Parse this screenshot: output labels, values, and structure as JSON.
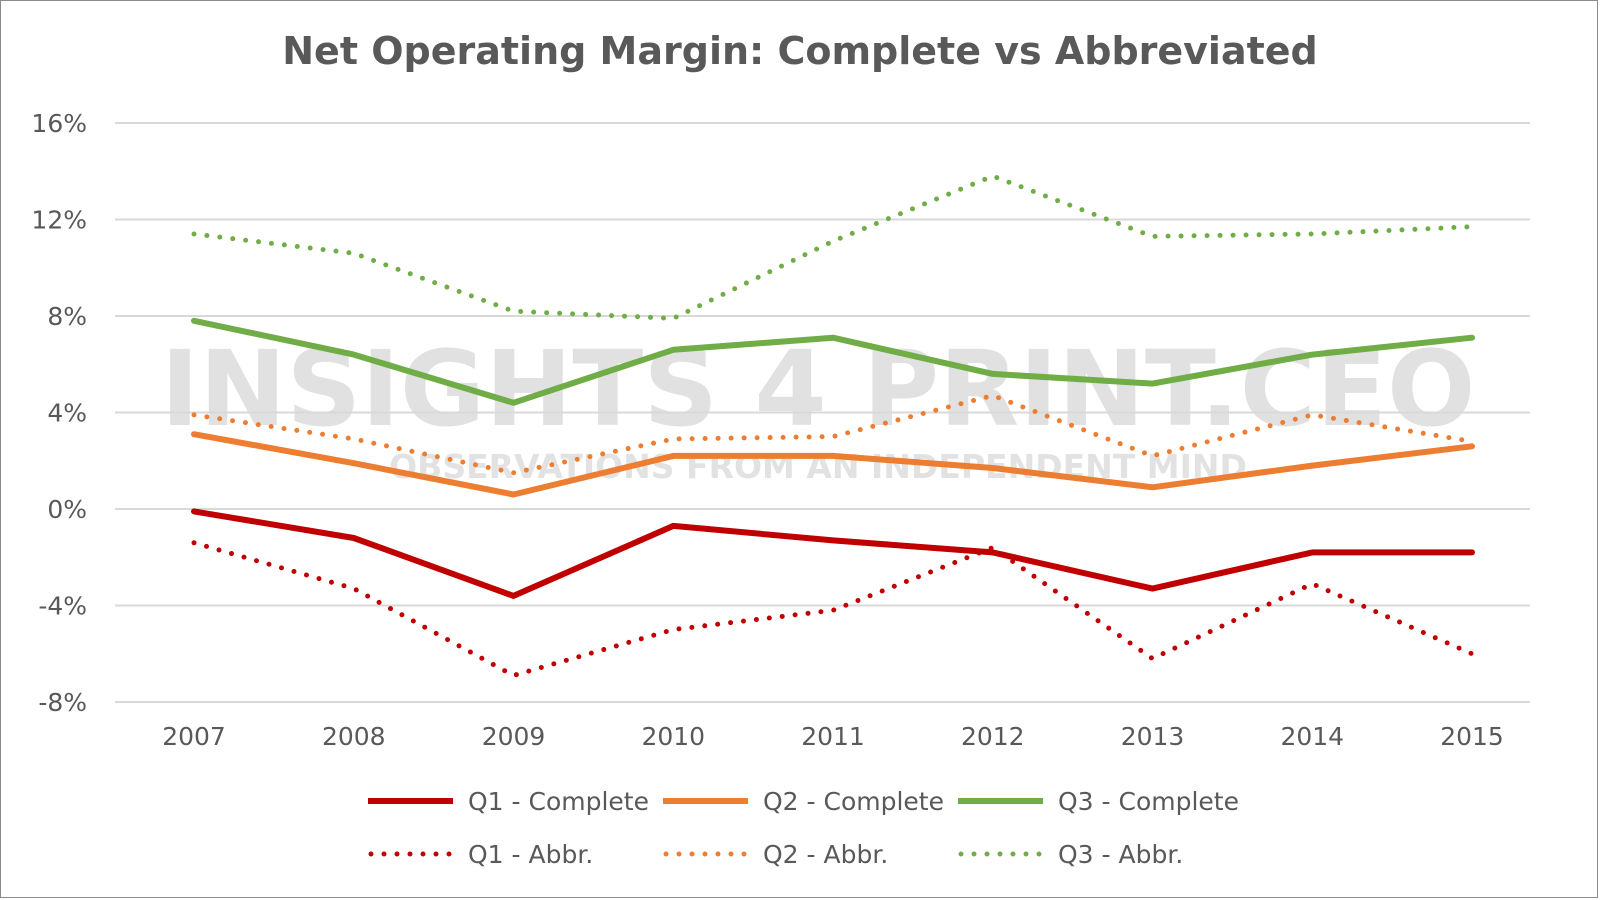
{
  "chart_data": {
    "type": "line",
    "title": "Net Operating Margin: Complete vs Abbreviated",
    "categories": [
      "2007",
      "2008",
      "2009",
      "2010",
      "2011",
      "2012",
      "2013",
      "2014",
      "2015"
    ],
    "ylim": [
      -8,
      16
    ],
    "yticks": [
      16,
      12,
      8,
      4,
      0,
      -4,
      -8
    ],
    "ytick_labels": [
      "16%",
      "12%",
      "8%",
      "4%",
      "0%",
      "-4%",
      "-8%"
    ],
    "grid": true,
    "legend_position": "bottom",
    "series": [
      {
        "name": "Q1 - Complete",
        "color": "#c00000",
        "style": "solid",
        "values": [
          -0.1,
          -1.2,
          -3.6,
          -0.7,
          -1.3,
          -1.8,
          -3.3,
          -1.8,
          -1.8
        ]
      },
      {
        "name": "Q2 - Complete",
        "color": "#ed7d31",
        "style": "solid",
        "values": [
          3.1,
          1.9,
          0.6,
          2.2,
          2.2,
          1.7,
          0.9,
          1.8,
          2.6
        ]
      },
      {
        "name": "Q3 - Complete",
        "color": "#70ad47",
        "style": "solid",
        "values": [
          7.8,
          6.4,
          4.4,
          6.6,
          7.1,
          5.6,
          5.2,
          6.4,
          7.1
        ]
      },
      {
        "name": "Q1 - Abbr.",
        "color": "#c00000",
        "style": "dotted",
        "values": [
          -1.4,
          -3.3,
          -6.9,
          -5.0,
          -4.2,
          -1.6,
          -6.2,
          -3.1,
          -6.0
        ]
      },
      {
        "name": "Q2 - Abbr.",
        "color": "#ed7d31",
        "style": "dotted",
        "values": [
          3.9,
          2.9,
          1.5,
          2.9,
          3.0,
          4.7,
          2.2,
          3.9,
          2.8
        ]
      },
      {
        "name": "Q3 - Abbr.",
        "color": "#70ad47",
        "style": "dotted",
        "values": [
          11.4,
          10.6,
          8.2,
          7.9,
          11.1,
          13.8,
          11.3,
          11.4,
          11.7
        ]
      }
    ]
  },
  "watermark": {
    "main": "INSIGHTS 4 PRINT.CEO",
    "sub": "OBSERVATIONS FROM AN INDEPENDENT MIND"
  }
}
